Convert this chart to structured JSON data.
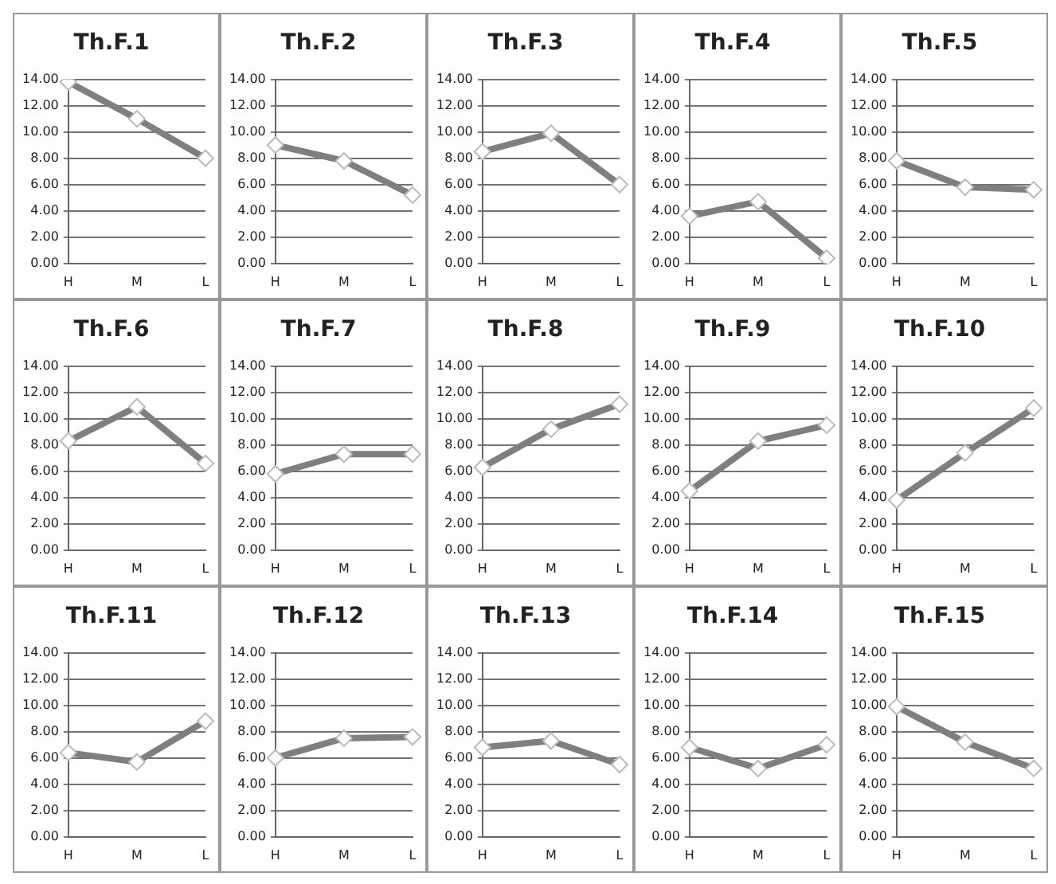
{
  "chart_data": [
    {
      "type": "line",
      "title": "Th.F.1",
      "categories": [
        "H",
        "M",
        "L"
      ],
      "values": [
        13.8,
        11.0,
        8.0
      ],
      "color": "#7f7f7f",
      "marker": "diamond",
      "grid": "y",
      "ylim": [
        0,
        14
      ],
      "yticks": [
        {
          "value": 0,
          "label": "0.00"
        },
        {
          "value": 2,
          "label": "2.00"
        },
        {
          "value": 4,
          "label": "4.00"
        },
        {
          "value": 6,
          "label": "6.00"
        },
        {
          "value": 8,
          "label": "8.00"
        },
        {
          "value": 10,
          "label": "10.00"
        },
        {
          "value": 12,
          "label": "12.00"
        },
        {
          "value": 14,
          "label": "14.00"
        }
      ]
    },
    {
      "type": "line",
      "title": "Th.F.2",
      "categories": [
        "H",
        "M",
        "L"
      ],
      "values": [
        9.0,
        7.8,
        5.2
      ],
      "color": "#7f7f7f",
      "marker": "diamond",
      "grid": "y",
      "ylim": [
        0,
        14
      ],
      "yticks": [
        {
          "value": 0,
          "label": "0.00"
        },
        {
          "value": 2,
          "label": "2.00"
        },
        {
          "value": 4,
          "label": "4.00"
        },
        {
          "value": 6,
          "label": "6.00"
        },
        {
          "value": 8,
          "label": "8.00"
        },
        {
          "value": 10,
          "label": "10.00"
        },
        {
          "value": 12,
          "label": "12.00"
        },
        {
          "value": 14,
          "label": "14.00"
        }
      ]
    },
    {
      "type": "line",
      "title": "Th.F.3",
      "categories": [
        "H",
        "M",
        "L"
      ],
      "values": [
        8.5,
        9.9,
        6.0
      ],
      "color": "#7f7f7f",
      "marker": "diamond",
      "grid": "y",
      "ylim": [
        0,
        14
      ],
      "yticks": [
        {
          "value": 0,
          "label": "0.00"
        },
        {
          "value": 2,
          "label": "2.00"
        },
        {
          "value": 4,
          "label": "4.00"
        },
        {
          "value": 6,
          "label": "6.00"
        },
        {
          "value": 8,
          "label": "8.00"
        },
        {
          "value": 10,
          "label": "10.00"
        },
        {
          "value": 12,
          "label": "12.00"
        },
        {
          "value": 14,
          "label": "14.00"
        }
      ]
    },
    {
      "type": "line",
      "title": "Th.F.4",
      "categories": [
        "H",
        "M",
        "L"
      ],
      "values": [
        3.6,
        4.7,
        0.4
      ],
      "color": "#7f7f7f",
      "marker": "diamond",
      "grid": "y",
      "ylim": [
        0,
        14
      ],
      "yticks": [
        {
          "value": 0,
          "label": "0.00"
        },
        {
          "value": 2,
          "label": "2.00"
        },
        {
          "value": 4,
          "label": "4.00"
        },
        {
          "value": 6,
          "label": "6.00"
        },
        {
          "value": 8,
          "label": "8.00"
        },
        {
          "value": 10,
          "label": "10.00"
        },
        {
          "value": 12,
          "label": "12.00"
        },
        {
          "value": 14,
          "label": "14.00"
        }
      ]
    },
    {
      "type": "line",
      "title": "Th.F.5",
      "categories": [
        "H",
        "M",
        "L"
      ],
      "values": [
        7.8,
        5.8,
        5.6
      ],
      "color": "#7f7f7f",
      "marker": "diamond",
      "grid": "y",
      "ylim": [
        0,
        14
      ],
      "yticks": [
        {
          "value": 0,
          "label": "0.00"
        },
        {
          "value": 2,
          "label": "2.00"
        },
        {
          "value": 4,
          "label": "4.00"
        },
        {
          "value": 6,
          "label": "6.00"
        },
        {
          "value": 8,
          "label": "8.00"
        },
        {
          "value": 10,
          "label": "10.00"
        },
        {
          "value": 12,
          "label": "12.00"
        },
        {
          "value": 14,
          "label": "14.00"
        }
      ]
    },
    {
      "type": "line",
      "title": "Th.F.6",
      "categories": [
        "H",
        "M",
        "L"
      ],
      "values": [
        8.3,
        10.9,
        6.6
      ],
      "color": "#7f7f7f",
      "marker": "diamond",
      "grid": "y",
      "ylim": [
        0,
        14
      ],
      "yticks": [
        {
          "value": 0,
          "label": "0.00"
        },
        {
          "value": 2,
          "label": "2.00"
        },
        {
          "value": 4,
          "label": "4.00"
        },
        {
          "value": 6,
          "label": "6.00"
        },
        {
          "value": 8,
          "label": "8.00"
        },
        {
          "value": 10,
          "label": "10.00"
        },
        {
          "value": 12,
          "label": "12.00"
        },
        {
          "value": 14,
          "label": "14.00"
        }
      ]
    },
    {
      "type": "line",
      "title": "Th.F.7",
      "categories": [
        "H",
        "M",
        "L"
      ],
      "values": [
        5.8,
        7.3,
        7.3
      ],
      "color": "#7f7f7f",
      "marker": "diamond",
      "grid": "y",
      "ylim": [
        0,
        14
      ],
      "yticks": [
        {
          "value": 0,
          "label": "0.00"
        },
        {
          "value": 2,
          "label": "2.00"
        },
        {
          "value": 4,
          "label": "4.00"
        },
        {
          "value": 6,
          "label": "6.00"
        },
        {
          "value": 8,
          "label": "8.00"
        },
        {
          "value": 10,
          "label": "10.00"
        },
        {
          "value": 12,
          "label": "12.00"
        },
        {
          "value": 14,
          "label": "14.00"
        }
      ]
    },
    {
      "type": "line",
      "title": "Th.F.8",
      "categories": [
        "H",
        "M",
        "L"
      ],
      "values": [
        6.3,
        9.2,
        11.1
      ],
      "color": "#7f7f7f",
      "marker": "diamond",
      "grid": "y",
      "ylim": [
        0,
        14
      ],
      "yticks": [
        {
          "value": 0,
          "label": "0.00"
        },
        {
          "value": 2,
          "label": "2.00"
        },
        {
          "value": 4,
          "label": "4.00"
        },
        {
          "value": 6,
          "label": "6.00"
        },
        {
          "value": 8,
          "label": "8.00"
        },
        {
          "value": 10,
          "label": "10.00"
        },
        {
          "value": 12,
          "label": "12.00"
        },
        {
          "value": 14,
          "label": "14.00"
        }
      ]
    },
    {
      "type": "line",
      "title": "Th.F.9",
      "categories": [
        "H",
        "M",
        "L"
      ],
      "values": [
        4.5,
        8.3,
        9.5
      ],
      "color": "#7f7f7f",
      "marker": "diamond",
      "grid": "y",
      "ylim": [
        0,
        14
      ],
      "yticks": [
        {
          "value": 0,
          "label": "0.00"
        },
        {
          "value": 2,
          "label": "2.00"
        },
        {
          "value": 4,
          "label": "4.00"
        },
        {
          "value": 6,
          "label": "6.00"
        },
        {
          "value": 8,
          "label": "8.00"
        },
        {
          "value": 10,
          "label": "10.00"
        },
        {
          "value": 12,
          "label": "12.00"
        },
        {
          "value": 14,
          "label": "14.00"
        }
      ]
    },
    {
      "type": "line",
      "title": "Th.F.10",
      "categories": [
        "H",
        "M",
        "L"
      ],
      "values": [
        3.8,
        7.4,
        10.8
      ],
      "color": "#7f7f7f",
      "marker": "diamond",
      "grid": "y",
      "ylim": [
        0,
        14
      ],
      "yticks": [
        {
          "value": 0,
          "label": "0.00"
        },
        {
          "value": 2,
          "label": "2.00"
        },
        {
          "value": 4,
          "label": "4.00"
        },
        {
          "value": 6,
          "label": "6.00"
        },
        {
          "value": 8,
          "label": "8.00"
        },
        {
          "value": 10,
          "label": "10.00"
        },
        {
          "value": 12,
          "label": "12.00"
        },
        {
          "value": 14,
          "label": "14.00"
        }
      ]
    },
    {
      "type": "line",
      "title": "Th.F.11",
      "categories": [
        "H",
        "M",
        "L"
      ],
      "values": [
        6.4,
        5.7,
        8.8
      ],
      "color": "#7f7f7f",
      "marker": "diamond",
      "grid": "y",
      "ylim": [
        0,
        14
      ],
      "yticks": [
        {
          "value": 0,
          "label": "0.00"
        },
        {
          "value": 2,
          "label": "2.00"
        },
        {
          "value": 4,
          "label": "4.00"
        },
        {
          "value": 6,
          "label": "6.00"
        },
        {
          "value": 8,
          "label": "8.00"
        },
        {
          "value": 10,
          "label": "10.00"
        },
        {
          "value": 12,
          "label": "12.00"
        },
        {
          "value": 14,
          "label": "14.00"
        }
      ]
    },
    {
      "type": "line",
      "title": "Th.F.12",
      "categories": [
        "H",
        "M",
        "L"
      ],
      "values": [
        6.0,
        7.5,
        7.6
      ],
      "color": "#7f7f7f",
      "marker": "diamond",
      "grid": "y",
      "ylim": [
        0,
        14
      ],
      "yticks": [
        {
          "value": 0,
          "label": "0.00"
        },
        {
          "value": 2,
          "label": "2.00"
        },
        {
          "value": 4,
          "label": "4.00"
        },
        {
          "value": 6,
          "label": "6.00"
        },
        {
          "value": 8,
          "label": "8.00"
        },
        {
          "value": 10,
          "label": "10.00"
        },
        {
          "value": 12,
          "label": "12.00"
        },
        {
          "value": 14,
          "label": "14.00"
        }
      ]
    },
    {
      "type": "line",
      "title": "Th.F.13",
      "categories": [
        "H",
        "M",
        "L"
      ],
      "values": [
        6.8,
        7.3,
        5.5
      ],
      "color": "#7f7f7f",
      "marker": "diamond",
      "grid": "y",
      "ylim": [
        0,
        14
      ],
      "yticks": [
        {
          "value": 0,
          "label": "0.00"
        },
        {
          "value": 2,
          "label": "2.00"
        },
        {
          "value": 4,
          "label": "4.00"
        },
        {
          "value": 6,
          "label": "6.00"
        },
        {
          "value": 8,
          "label": "8.00"
        },
        {
          "value": 10,
          "label": "10.00"
        },
        {
          "value": 12,
          "label": "12.00"
        },
        {
          "value": 14,
          "label": "14.00"
        }
      ]
    },
    {
      "type": "line",
      "title": "Th.F.14",
      "categories": [
        "H",
        "M",
        "L"
      ],
      "values": [
        6.8,
        5.2,
        7.0
      ],
      "color": "#7f7f7f",
      "marker": "diamond",
      "grid": "y",
      "ylim": [
        0,
        14
      ],
      "yticks": [
        {
          "value": 0,
          "label": "0.00"
        },
        {
          "value": 2,
          "label": "2.00"
        },
        {
          "value": 4,
          "label": "4.00"
        },
        {
          "value": 6,
          "label": "6.00"
        },
        {
          "value": 8,
          "label": "8.00"
        },
        {
          "value": 10,
          "label": "10.00"
        },
        {
          "value": 12,
          "label": "12.00"
        },
        {
          "value": 14,
          "label": "14.00"
        }
      ]
    },
    {
      "type": "line",
      "title": "Th.F.15",
      "categories": [
        "H",
        "M",
        "L"
      ],
      "values": [
        9.9,
        7.2,
        5.2
      ],
      "color": "#7f7f7f",
      "marker": "diamond",
      "grid": "y",
      "ylim": [
        0,
        14
      ],
      "yticks": [
        {
          "value": 0,
          "label": "0.00"
        },
        {
          "value": 2,
          "label": "2.00"
        },
        {
          "value": 4,
          "label": "4.00"
        },
        {
          "value": 6,
          "label": "6.00"
        },
        {
          "value": 8,
          "label": "8.00"
        },
        {
          "value": 10,
          "label": "10.00"
        },
        {
          "value": 12,
          "label": "12.00"
        },
        {
          "value": 14,
          "label": "14.00"
        }
      ]
    }
  ]
}
